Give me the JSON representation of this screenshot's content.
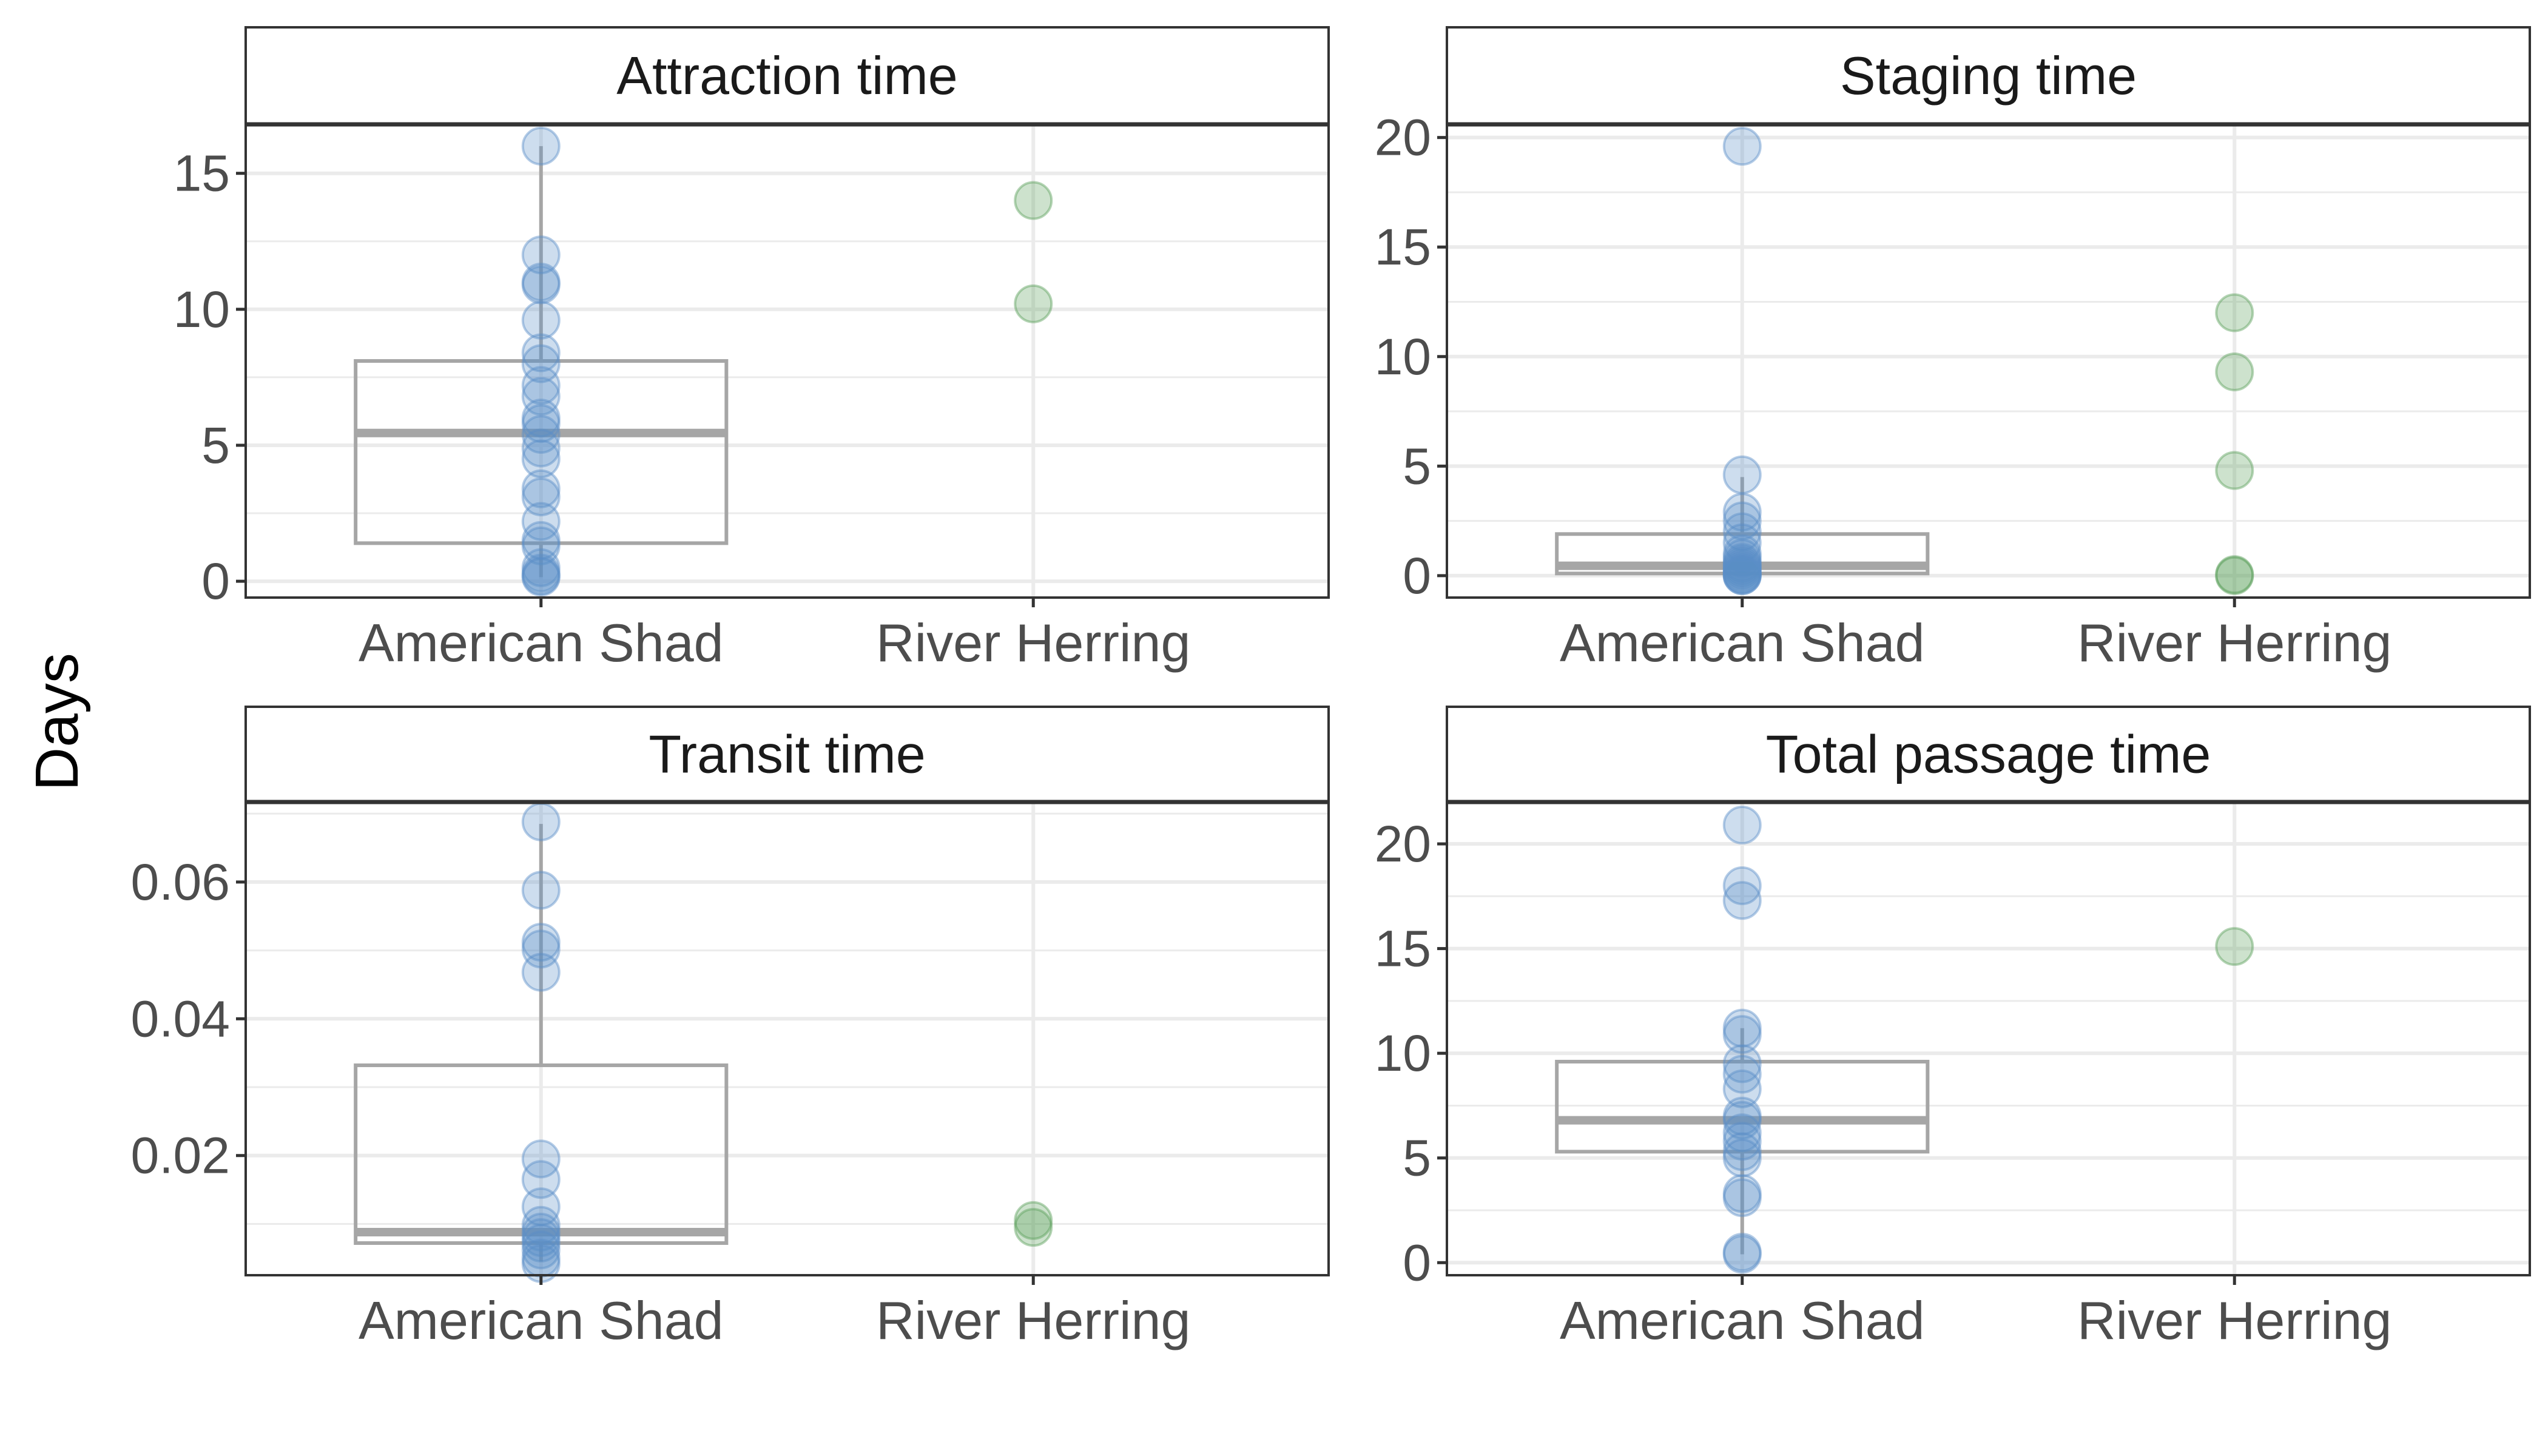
{
  "figure": {
    "ylabel": "Days"
  },
  "colors": {
    "american_shad": "#5b8fc7",
    "river_herring": "#5aa05a",
    "box": "#a6a6a6",
    "grid": "#ebebeb",
    "panel_border": "#333333"
  },
  "chart_data": [
    {
      "type": "boxplot",
      "title": "Attraction time",
      "categories": [
        "American Shad",
        "River Herring"
      ],
      "ylim": [
        -0.6,
        16.8
      ],
      "yticks": [
        0,
        5,
        10,
        15
      ],
      "yticklabels": [
        "0",
        "5",
        "10",
        "15"
      ],
      "box": {
        "category": "American Shad",
        "q1": 1.4,
        "median": 5.45,
        "q3": 8.1,
        "whisker_low": 0.15,
        "whisker_high": 16.0
      },
      "points": [
        {
          "category": "American Shad",
          "values": [
            16.0,
            12.0,
            11.0,
            10.9,
            9.6,
            8.4,
            8.0,
            7.2,
            6.8,
            6.0,
            5.8,
            5.4,
            4.9,
            4.5,
            3.4,
            3.1,
            2.2,
            1.5,
            1.3,
            0.5,
            0.3,
            0.2,
            0.15
          ]
        },
        {
          "category": "River Herring",
          "values": [
            14.0,
            10.2
          ]
        }
      ]
    },
    {
      "type": "boxplot",
      "title": "Staging time",
      "categories": [
        "American Shad",
        "River Herring"
      ],
      "ylim": [
        -1.0,
        20.6
      ],
      "yticks": [
        0,
        5,
        10,
        15,
        20
      ],
      "yticklabels": [
        "0",
        "5",
        "10",
        "15",
        "20"
      ],
      "box": {
        "category": "American Shad",
        "q1": 0.1,
        "median": 0.45,
        "q3": 1.9,
        "whisker_low": 0.0,
        "whisker_high": 4.5
      },
      "points": [
        {
          "category": "American Shad",
          "values": [
            19.6,
            4.6,
            2.9,
            2.5,
            2.0,
            1.5,
            1.0,
            0.8,
            0.6,
            0.5,
            0.4,
            0.3,
            0.2,
            0.1,
            0.05,
            0.0,
            0.0
          ]
        },
        {
          "category": "River Herring",
          "values": [
            12.0,
            9.3,
            4.8,
            0.05,
            0.0
          ]
        }
      ]
    },
    {
      "type": "boxplot",
      "title": "Transit time",
      "categories": [
        "American Shad",
        "River Herring"
      ],
      "ylim": [
        0.0025,
        0.0717
      ],
      "yticks": [
        0.02,
        0.04,
        0.06
      ],
      "yticklabels": [
        "0.02",
        "0.04",
        "0.06"
      ],
      "box": {
        "category": "American Shad",
        "q1": 0.0072,
        "median": 0.0088,
        "q3": 0.0332,
        "whisker_low": 0.0045,
        "whisker_high": 0.0685
      },
      "points": [
        {
          "category": "American Shad",
          "values": [
            0.0688,
            0.0588,
            0.0512,
            0.0502,
            0.0468,
            0.0195,
            0.0165,
            0.0125,
            0.0098,
            0.0088,
            0.008,
            0.0072,
            0.0062,
            0.005,
            0.0042
          ]
        },
        {
          "category": "River Herring",
          "values": [
            0.0105,
            0.0095
          ]
        }
      ]
    },
    {
      "type": "boxplot",
      "title": "Total passage time",
      "categories": [
        "American Shad",
        "River Herring"
      ],
      "ylim": [
        -0.6,
        22.0
      ],
      "yticks": [
        0,
        5,
        10,
        15,
        20
      ],
      "yticklabels": [
        "0",
        "5",
        "10",
        "15",
        "20"
      ],
      "box": {
        "category": "American Shad",
        "q1": 5.3,
        "median": 6.8,
        "q3": 9.6,
        "whisker_low": 0.4,
        "whisker_high": 11.2
      },
      "points": [
        {
          "category": "American Shad",
          "values": [
            20.9,
            18.0,
            17.3,
            11.2,
            10.9,
            9.5,
            9.0,
            8.3,
            7.0,
            6.8,
            6.2,
            5.8,
            5.3,
            5.0,
            3.3,
            3.1,
            0.5,
            0.4
          ]
        },
        {
          "category": "River Herring",
          "values": [
            15.1
          ]
        }
      ]
    }
  ]
}
